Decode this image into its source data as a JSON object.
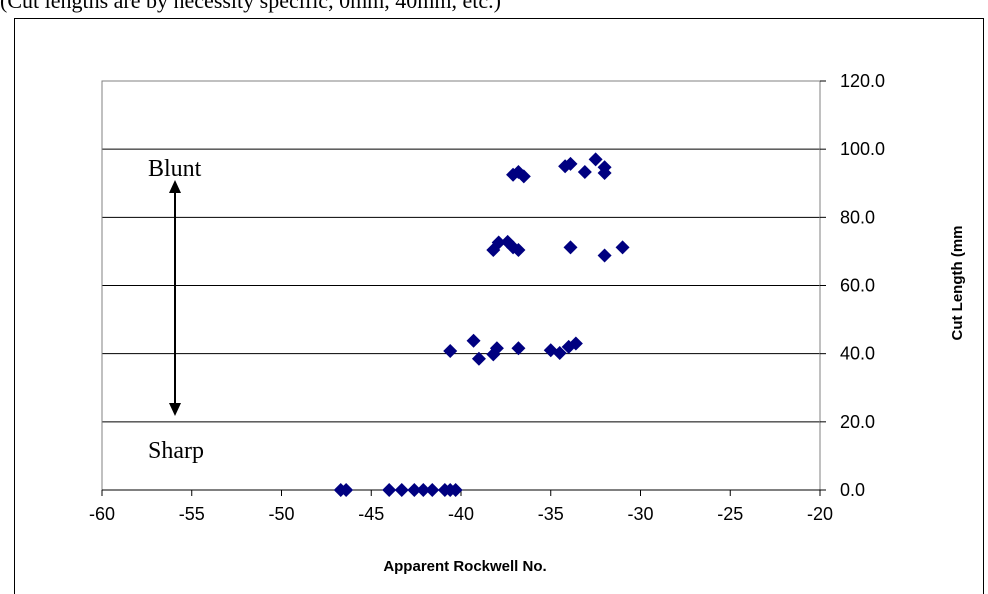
{
  "caption": "(Cut lengths are by necessity specific, 0mm, 40mm, etc.)",
  "chart_data": {
    "type": "scatter",
    "title": "",
    "xlabel": "Apparent Rockwell No.",
    "ylabel": "Cut Length (mm",
    "xlim": [
      -60,
      -20
    ],
    "ylim": [
      0,
      120
    ],
    "x_ticks": [
      "-60",
      "-55",
      "-50",
      "-45",
      "-40",
      "-35",
      "-30",
      "-25",
      "-20"
    ],
    "y_ticks": [
      "0.0",
      "20.0",
      "40.0",
      "60.0",
      "80.0",
      "100.0",
      "120.0"
    ],
    "y_axis_side": "right",
    "grid": "horizontal",
    "marker_color": "#000080",
    "annotations": {
      "blunt": "Blunt",
      "sharp": "Sharp"
    },
    "points": [
      [
        -46.7,
        0
      ],
      [
        -46.4,
        0
      ],
      [
        -44.0,
        0
      ],
      [
        -43.3,
        0
      ],
      [
        -42.6,
        0
      ],
      [
        -42.1,
        0
      ],
      [
        -41.6,
        0
      ],
      [
        -40.9,
        0
      ],
      [
        -40.6,
        0
      ],
      [
        -40.3,
        0
      ],
      [
        -40.6,
        40.8
      ],
      [
        -39.3,
        43.8
      ],
      [
        -39.0,
        38.5
      ],
      [
        -38.2,
        39.8
      ],
      [
        -38.0,
        41.6
      ],
      [
        -36.8,
        41.6
      ],
      [
        -35.0,
        41.0
      ],
      [
        -34.5,
        40.2
      ],
      [
        -34.0,
        42.0
      ],
      [
        -33.6,
        43.0
      ],
      [
        -38.2,
        70.4
      ],
      [
        -37.9,
        72.6
      ],
      [
        -37.4,
        72.8
      ],
      [
        -37.1,
        71.2
      ],
      [
        -36.8,
        70.4
      ],
      [
        -33.9,
        71.2
      ],
      [
        -32.0,
        68.8
      ],
      [
        -31.0,
        71.2
      ],
      [
        -37.1,
        92.5
      ],
      [
        -36.8,
        93.3
      ],
      [
        -36.5,
        92.0
      ],
      [
        -34.2,
        95.0
      ],
      [
        -33.9,
        95.7
      ],
      [
        -33.1,
        93.3
      ],
      [
        -32.5,
        97.0
      ],
      [
        -32.0,
        94.7
      ],
      [
        -32.0,
        93.0
      ]
    ]
  }
}
